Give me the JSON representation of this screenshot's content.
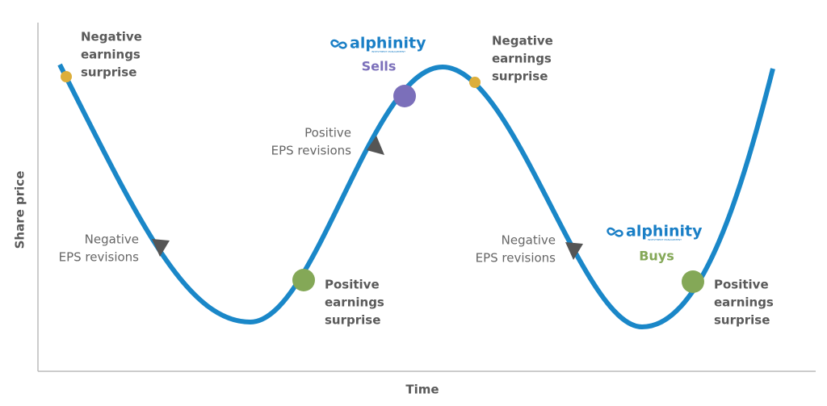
{
  "axes": {
    "y_label": "Share price",
    "x_label": "Time"
  },
  "annotations": {
    "negative_surprise_1": [
      "Negative",
      "earnings",
      "surprise"
    ],
    "negative_revisions_1": [
      "Negative",
      "EPS revisions"
    ],
    "positive_surprise_1": [
      "Positive",
      "earnings",
      "surprise"
    ],
    "positive_revisions": [
      "Positive",
      "EPS revisions"
    ],
    "negative_surprise_2": [
      "Negative",
      "earnings",
      "surprise"
    ],
    "negative_revisions_2": [
      "Negative",
      "EPS revisions"
    ],
    "positive_surprise_2": [
      "Positive",
      "earnings",
      "surprise"
    ]
  },
  "sell_logo": {
    "brand": "alphinity",
    "tagline": "INVESTMENT MANAGEMENT",
    "action": "Sells"
  },
  "buy_logo": {
    "brand": "alphinity",
    "tagline": "INVESTMENT MANAGEMENT",
    "action": "Buys"
  }
}
